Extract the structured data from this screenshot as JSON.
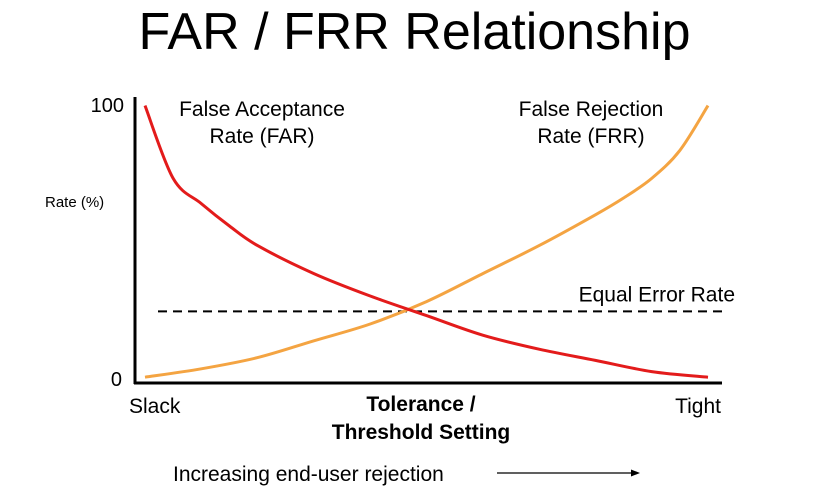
{
  "page": {
    "title": "FAR / FRR Relationship"
  },
  "colors": {
    "far": "#e31b1b",
    "frr": "#f4a442",
    "axis": "#000000",
    "eer_line": "#000000"
  },
  "chart_data": {
    "type": "line",
    "title": "FAR / FRR Relationship",
    "ylabel": "Rate (%)",
    "xlabel": "Tolerance / Threshold Setting",
    "xlabel_lines": [
      "Tolerance /",
      "Threshold Setting"
    ],
    "ylim": [
      0,
      100
    ],
    "xlim": [
      0,
      1
    ],
    "y_ticks": [
      "0",
      "100"
    ],
    "x_ticks": [
      "Slack",
      "Tight"
    ],
    "grid": false,
    "series": [
      {
        "name": "False Acceptance Rate (FAR)",
        "label_lines": [
          "False Acceptance",
          "Rate (FAR)"
        ],
        "x": [
          0.0,
          0.05,
          0.1,
          0.15,
          0.2,
          0.3,
          0.4,
          0.5,
          0.6,
          0.7,
          0.8,
          0.9,
          1.0
        ],
        "values": [
          98,
          72,
          63,
          55,
          48,
          38,
          30,
          23,
          16,
          11,
          7,
          3,
          1
        ]
      },
      {
        "name": "False Rejection Rate (FRR)",
        "label_lines": [
          "False Rejection",
          "Rate (FRR)"
        ],
        "x": [
          0.0,
          0.1,
          0.2,
          0.3,
          0.4,
          0.5,
          0.6,
          0.7,
          0.8,
          0.85,
          0.9,
          0.95,
          1.0
        ],
        "values": [
          1,
          4,
          8,
          14,
          20,
          28,
          38,
          48,
          59,
          65,
          72,
          82,
          98
        ]
      }
    ],
    "annotations": [
      {
        "text": "Equal Error Rate",
        "type": "dashed-hline",
        "y": 24.5
      }
    ],
    "footnote": "Increasing end-user rejection"
  }
}
